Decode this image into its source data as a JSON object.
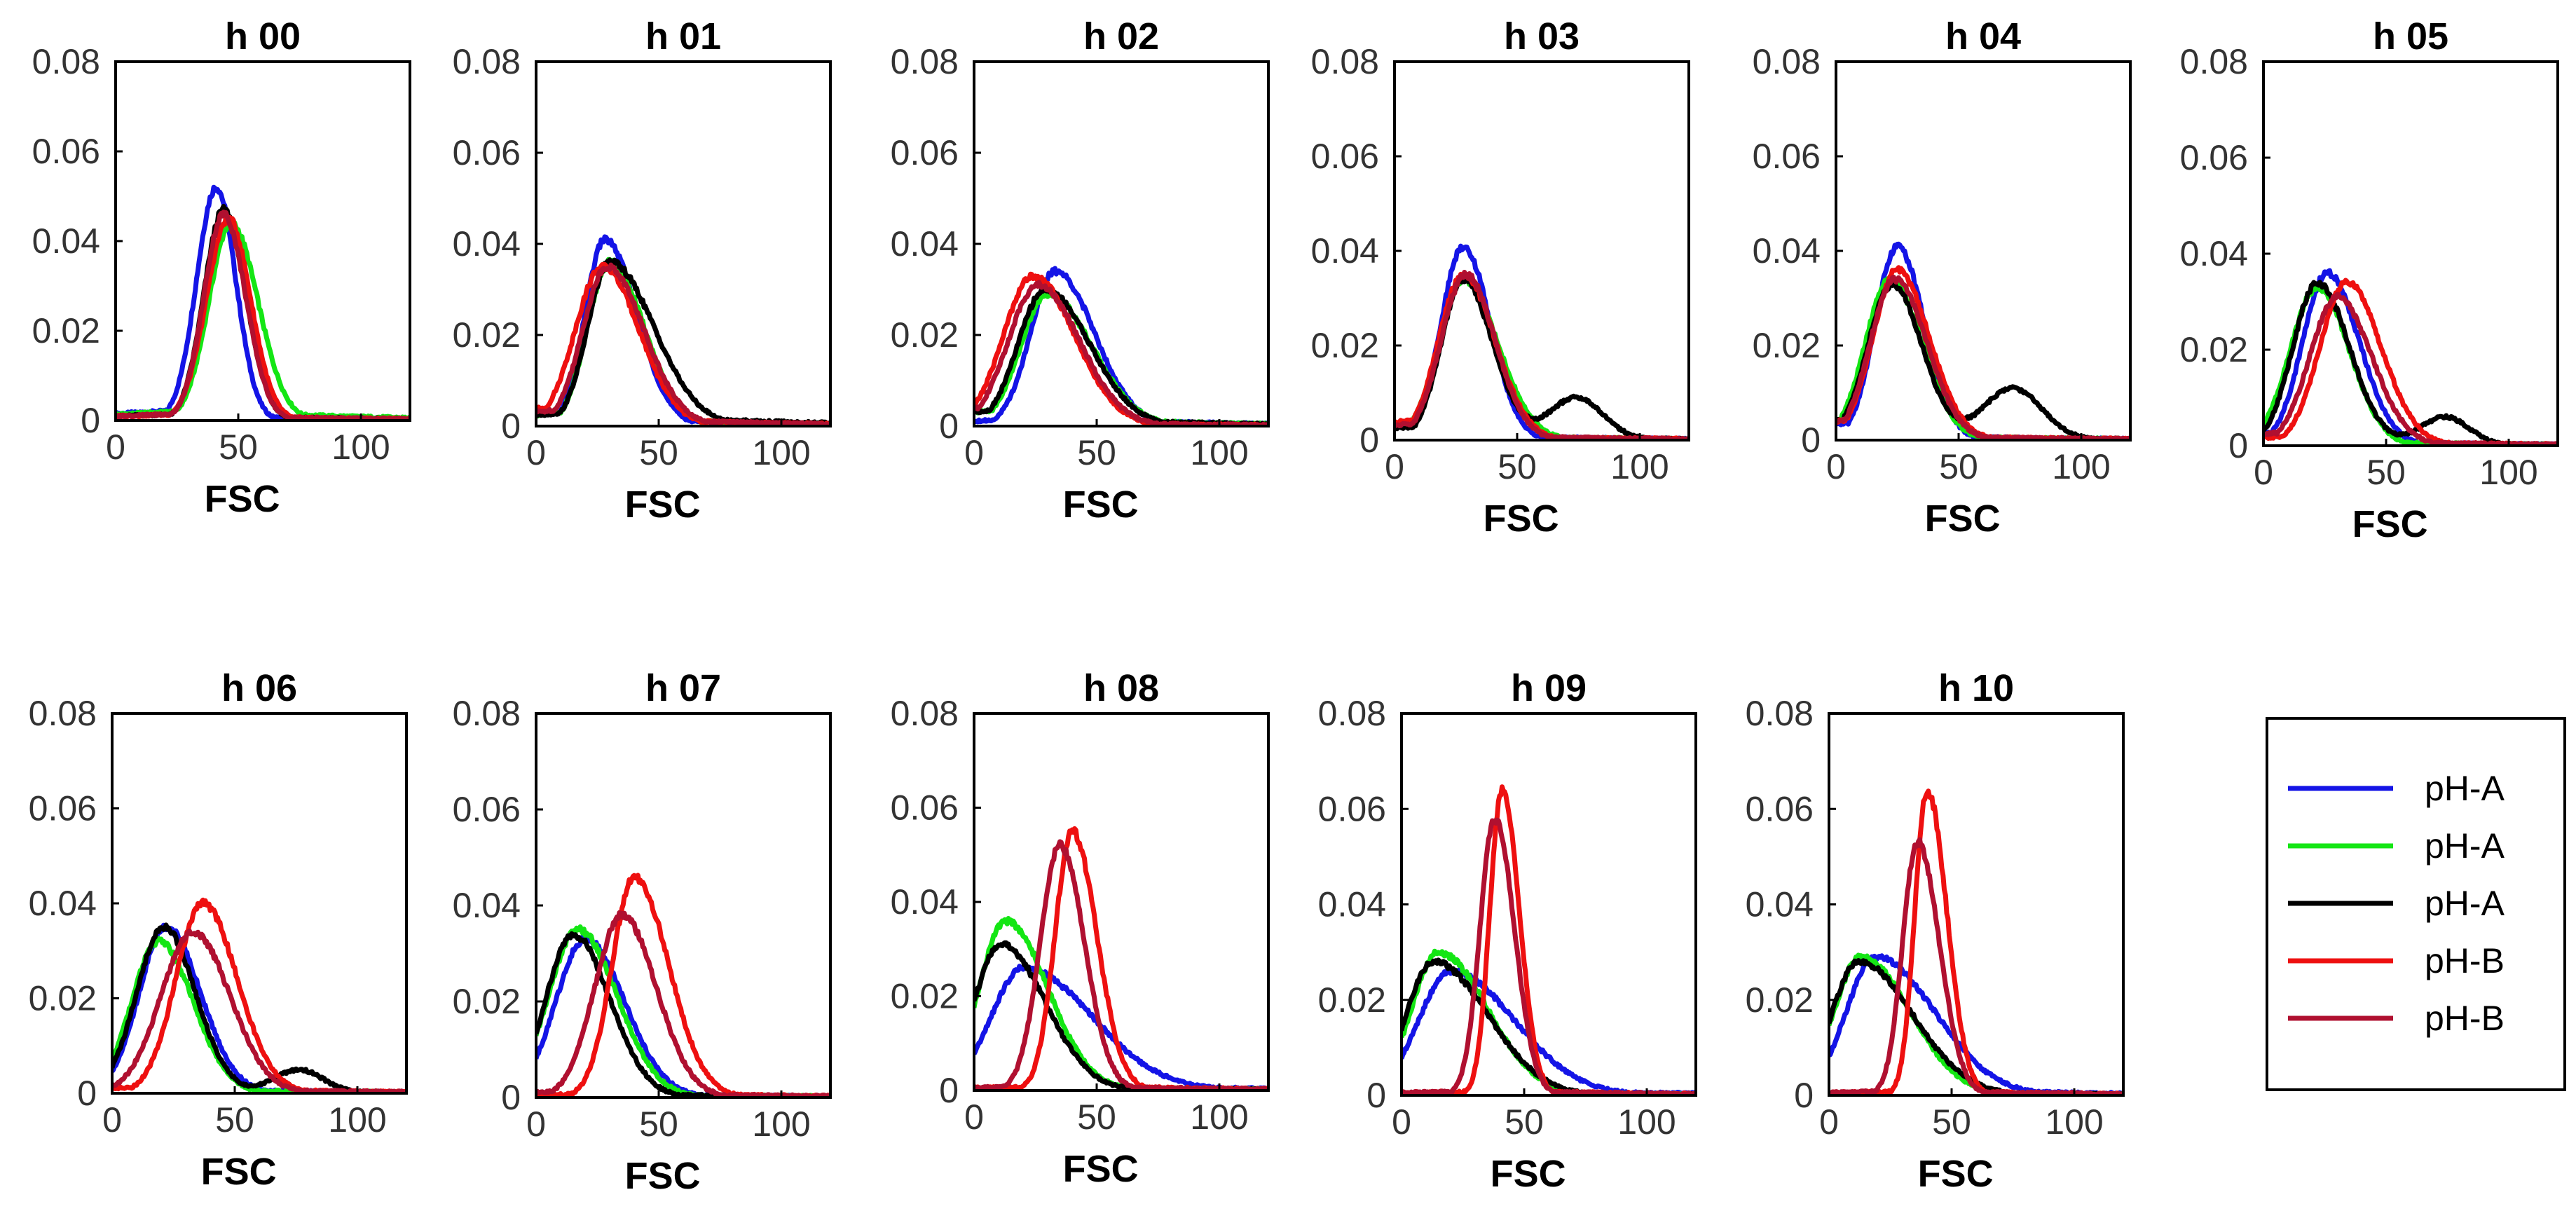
{
  "colors": {
    "blue": "#1414e6",
    "green": "#14e614",
    "black": "#000000",
    "red": "#ee1010",
    "darkred": "#b01030"
  },
  "legend": [
    {
      "label": "pH-A",
      "color_key": "blue"
    },
    {
      "label": "pH-A",
      "color_key": "green"
    },
    {
      "label": "pH-A",
      "color_key": "black"
    },
    {
      "label": "pH-B",
      "color_key": "red"
    },
    {
      "label": "pH-B",
      "color_key": "darkred"
    }
  ],
  "chart_data": [
    {
      "title": "h 00",
      "type": "line",
      "xlabel": "FSC",
      "xlim": [
        0,
        120
      ],
      "ylim": [
        0,
        0.08
      ],
      "xticks": [
        0,
        50,
        100
      ],
      "yticks": [
        0,
        0.02,
        0.04,
        0.06,
        0.08
      ],
      "ytick_labels": [
        "0",
        "0.02",
        "0.04",
        "0.06",
        "0.08"
      ],
      "series": [
        {
          "name": "pH-A",
          "color_key": "blue",
          "peak_x": 41,
          "peak_y": 0.052,
          "width_left": 8,
          "width_right": 8,
          "base_left": 0.003,
          "base_right": 0.001
        },
        {
          "name": "pH-A",
          "color_key": "green",
          "peak_x": 47,
          "peak_y": 0.044,
          "width_left": 9,
          "width_right": 11,
          "base_left": 0.003,
          "base_right": 0.002
        },
        {
          "name": "pH-A",
          "color_key": "black",
          "peak_x": 44,
          "peak_y": 0.047,
          "width_left": 8,
          "width_right": 9,
          "base_left": 0.002,
          "base_right": 0.001
        },
        {
          "name": "pH-B",
          "color_key": "red",
          "peak_x": 46,
          "peak_y": 0.045,
          "width_left": 9,
          "width_right": 9,
          "base_left": 0.002,
          "base_right": 0.001
        },
        {
          "name": "pH-B",
          "color_key": "darkred",
          "peak_x": 44,
          "peak_y": 0.046,
          "width_left": 8,
          "width_right": 9,
          "base_left": 0.002,
          "base_right": 0.001
        }
      ]
    },
    {
      "title": "h 01",
      "type": "line",
      "xlabel": "FSC",
      "xlim": [
        0,
        120
      ],
      "ylim": [
        0,
        0.08
      ],
      "xticks": [
        0,
        50,
        100
      ],
      "yticks": [
        0,
        0.02,
        0.04,
        0.06,
        0.08
      ],
      "ytick_labels": [
        "0",
        "0.02",
        "0.04",
        "0.06",
        "0.08"
      ],
      "series": [
        {
          "name": "pH-A",
          "color_key": "blue",
          "peak_x": 28,
          "peak_y": 0.041,
          "width_left": 8,
          "width_right": 13,
          "base_left": 0.004,
          "base_right": 0.002
        },
        {
          "name": "pH-A",
          "color_key": "green",
          "peak_x": 30,
          "peak_y": 0.036,
          "width_left": 9,
          "width_right": 14,
          "base_left": 0.004,
          "base_right": 0.002
        },
        {
          "name": "pH-A",
          "color_key": "black",
          "peak_x": 30,
          "peak_y": 0.036,
          "width_left": 9,
          "width_right": 18,
          "base_left": 0.004,
          "base_right": 0.003
        },
        {
          "name": "pH-B",
          "color_key": "red",
          "peak_x": 27,
          "peak_y": 0.035,
          "width_left": 11,
          "width_right": 15,
          "base_left": 0.006,
          "base_right": 0.002
        },
        {
          "name": "pH-B",
          "color_key": "darkred",
          "peak_x": 29,
          "peak_y": 0.035,
          "width_left": 10,
          "width_right": 15,
          "base_left": 0.005,
          "base_right": 0.002
        }
      ]
    },
    {
      "title": "h 02",
      "type": "line",
      "xlabel": "FSC",
      "xlim": [
        0,
        120
      ],
      "ylim": [
        0,
        0.08
      ],
      "xticks": [
        0,
        50,
        100
      ],
      "yticks": [
        0,
        0.02,
        0.04,
        0.06,
        0.08
      ],
      "ytick_labels": [
        "0",
        "0.02",
        "0.04",
        "0.06",
        "0.08"
      ],
      "series": [
        {
          "name": "pH-A",
          "color_key": "blue",
          "peak_x": 33,
          "peak_y": 0.034,
          "width_left": 10,
          "width_right": 16,
          "base_left": 0.002,
          "base_right": 0.002
        },
        {
          "name": "pH-A",
          "color_key": "green",
          "peak_x": 30,
          "peak_y": 0.029,
          "width_left": 11,
          "width_right": 18,
          "base_left": 0.005,
          "base_right": 0.002
        },
        {
          "name": "pH-A",
          "color_key": "black",
          "peak_x": 29,
          "peak_y": 0.03,
          "width_left": 11,
          "width_right": 18,
          "base_left": 0.005,
          "base_right": 0.002
        },
        {
          "name": "pH-B",
          "color_key": "red",
          "peak_x": 24,
          "peak_y": 0.033,
          "width_left": 12,
          "width_right": 17,
          "base_left": 0.006,
          "base_right": 0.001
        },
        {
          "name": "pH-B",
          "color_key": "darkred",
          "peak_x": 26,
          "peak_y": 0.031,
          "width_left": 12,
          "width_right": 17,
          "base_left": 0.006,
          "base_right": 0.001
        }
      ]
    },
    {
      "title": "h 03",
      "type": "line",
      "xlabel": "FSC",
      "xlim": [
        0,
        120
      ],
      "ylim": [
        0,
        0.08
      ],
      "xticks": [
        0,
        50,
        100
      ],
      "yticks": [
        0,
        0.02,
        0.04,
        0.06,
        0.08
      ],
      "ytick_labels": [
        "0",
        "0.02",
        "0.04",
        "0.06",
        "0.08"
      ],
      "series": [
        {
          "name": "pH-A",
          "color_key": "blue",
          "peak_x": 28,
          "peak_y": 0.041,
          "width_left": 9,
          "width_right": 11,
          "base_left": 0.005,
          "base_right": 0.001
        },
        {
          "name": "pH-A",
          "color_key": "green",
          "peak_x": 28,
          "peak_y": 0.034,
          "width_left": 10,
          "width_right": 14,
          "base_left": 0.005,
          "base_right": 0.001
        },
        {
          "name": "pH-A",
          "color_key": "black",
          "peak_x": 28,
          "peak_y": 0.034,
          "width_left": 9,
          "width_right": 12,
          "base_left": 0.004,
          "base_right": 0.001,
          "bump_x": 74,
          "bump_y": 0.009,
          "bump_w": 11
        },
        {
          "name": "pH-B",
          "color_key": "red",
          "peak_x": 28,
          "peak_y": 0.035,
          "width_left": 10,
          "width_right": 13,
          "base_left": 0.006,
          "base_right": 0.001
        },
        {
          "name": "pH-B",
          "color_key": "darkred",
          "peak_x": 29,
          "peak_y": 0.035,
          "width_left": 10,
          "width_right": 12,
          "base_left": 0.005,
          "base_right": 0.001
        }
      ]
    },
    {
      "title": "h 04",
      "type": "line",
      "xlabel": "FSC",
      "xlim": [
        0,
        120
      ],
      "ylim": [
        0,
        0.08
      ],
      "xticks": [
        0,
        50,
        100
      ],
      "yticks": [
        0,
        0.02,
        0.04,
        0.06,
        0.08
      ],
      "ytick_labels": [
        "0",
        "0.02",
        "0.04",
        "0.06",
        "0.08"
      ],
      "series": [
        {
          "name": "pH-A",
          "color_key": "blue",
          "peak_x": 25,
          "peak_y": 0.041,
          "width_left": 9,
          "width_right": 11,
          "base_left": 0.005,
          "base_right": 0.001
        },
        {
          "name": "pH-A",
          "color_key": "green",
          "peak_x": 22,
          "peak_y": 0.034,
          "width_left": 10,
          "width_right": 13,
          "base_left": 0.006,
          "base_right": 0.001
        },
        {
          "name": "pH-A",
          "color_key": "black",
          "peak_x": 23,
          "peak_y": 0.033,
          "width_left": 10,
          "width_right": 12,
          "base_left": 0.006,
          "base_right": 0.001,
          "bump_x": 72,
          "bump_y": 0.011,
          "bump_w": 12
        },
        {
          "name": "pH-B",
          "color_key": "red",
          "peak_x": 25,
          "peak_y": 0.036,
          "width_left": 10,
          "width_right": 13,
          "base_left": 0.006,
          "base_right": 0.001
        },
        {
          "name": "pH-B",
          "color_key": "darkred",
          "peak_x": 24,
          "peak_y": 0.034,
          "width_left": 10,
          "width_right": 13,
          "base_left": 0.006,
          "base_right": 0.001
        }
      ]
    },
    {
      "title": "h 05",
      "type": "line",
      "xlabel": "FSC",
      "xlim": [
        0,
        120
      ],
      "ylim": [
        0,
        0.08
      ],
      "xticks": [
        0,
        50,
        100
      ],
      "yticks": [
        0,
        0.02,
        0.04,
        0.06,
        0.08
      ],
      "ytick_labels": [
        "0",
        "0.02",
        "0.04",
        "0.06",
        "0.08"
      ],
      "series": [
        {
          "name": "pH-A",
          "color_key": "blue",
          "peak_x": 26,
          "peak_y": 0.036,
          "width_left": 10,
          "width_right": 13,
          "base_left": 0.004,
          "base_right": 0.001
        },
        {
          "name": "pH-A",
          "color_key": "green",
          "peak_x": 22,
          "peak_y": 0.033,
          "width_left": 11,
          "width_right": 13,
          "base_left": 0.005,
          "base_right": 0.001
        },
        {
          "name": "pH-A",
          "color_key": "black",
          "peak_x": 22,
          "peak_y": 0.034,
          "width_left": 10,
          "width_right": 13,
          "base_left": 0.005,
          "base_right": 0.001,
          "bump_x": 74,
          "bump_y": 0.006,
          "bump_w": 10
        },
        {
          "name": "pH-B",
          "color_key": "red",
          "peak_x": 34,
          "peak_y": 0.034,
          "width_left": 11,
          "width_right": 14,
          "base_left": 0.003,
          "base_right": 0.001
        },
        {
          "name": "pH-B",
          "color_key": "darkred",
          "peak_x": 30,
          "peak_y": 0.031,
          "width_left": 11,
          "width_right": 14,
          "base_left": 0.004,
          "base_right": 0.001
        }
      ]
    },
    {
      "title": "h 06",
      "type": "line",
      "xlabel": "FSC",
      "xlim": [
        0,
        120
      ],
      "ylim": [
        0,
        0.08
      ],
      "xticks": [
        0,
        50,
        100
      ],
      "yticks": [
        0,
        0.02,
        0.04,
        0.06,
        0.08
      ],
      "ytick_labels": [
        "0",
        "0.02",
        "0.04",
        "0.06",
        "0.08"
      ],
      "series": [
        {
          "name": "pH-A",
          "color_key": "blue",
          "peak_x": 22,
          "peak_y": 0.035,
          "width_left": 11,
          "width_right": 14,
          "base_left": 0.004,
          "base_right": 0.001
        },
        {
          "name": "pH-A",
          "color_key": "green",
          "peak_x": 19,
          "peak_y": 0.032,
          "width_left": 11,
          "width_right": 14,
          "base_left": 0.005,
          "base_right": 0.001
        },
        {
          "name": "pH-A",
          "color_key": "black",
          "peak_x": 21,
          "peak_y": 0.035,
          "width_left": 11,
          "width_right": 13,
          "base_left": 0.005,
          "base_right": 0.001,
          "bump_x": 76,
          "bump_y": 0.005,
          "bump_w": 10
        },
        {
          "name": "pH-B",
          "color_key": "red",
          "peak_x": 37,
          "peak_y": 0.04,
          "width_left": 11,
          "width_right": 14,
          "base_left": 0.002,
          "base_right": 0.001
        },
        {
          "name": "pH-B",
          "color_key": "darkred",
          "peak_x": 33,
          "peak_y": 0.034,
          "width_left": 13,
          "width_right": 15,
          "base_left": 0.003,
          "base_right": 0.001
        }
      ]
    },
    {
      "title": "h 07",
      "type": "line",
      "xlabel": "FSC",
      "xlim": [
        0,
        120
      ],
      "ylim": [
        0,
        0.08
      ],
      "xticks": [
        0,
        50,
        100
      ],
      "yticks": [
        0,
        0.02,
        0.04,
        0.06,
        0.08
      ],
      "ytick_labels": [
        "0",
        "0.02",
        "0.04",
        "0.06",
        "0.08"
      ],
      "series": [
        {
          "name": "pH-A",
          "color_key": "blue",
          "peak_x": 20,
          "peak_y": 0.033,
          "width_left": 12,
          "width_right": 16,
          "base_left": 0.006,
          "base_right": 0.001
        },
        {
          "name": "pH-A",
          "color_key": "green",
          "peak_x": 17,
          "peak_y": 0.035,
          "width_left": 12,
          "width_right": 16,
          "base_left": 0.007,
          "base_right": 0.001
        },
        {
          "name": "pH-A",
          "color_key": "black",
          "peak_x": 15,
          "peak_y": 0.034,
          "width_left": 11,
          "width_right": 15,
          "base_left": 0.007,
          "base_right": 0.001
        },
        {
          "name": "pH-B",
          "color_key": "red",
          "peak_x": 40,
          "peak_y": 0.046,
          "width_left": 9,
          "width_right": 14,
          "base_left": 0.001,
          "base_right": 0.001
        },
        {
          "name": "pH-B",
          "color_key": "darkred",
          "peak_x": 35,
          "peak_y": 0.038,
          "width_left": 11,
          "width_right": 14,
          "base_left": 0.002,
          "base_right": 0.001
        }
      ]
    },
    {
      "title": "h 08",
      "type": "line",
      "xlabel": "FSC",
      "xlim": [
        0,
        120
      ],
      "ylim": [
        0,
        0.08
      ],
      "xticks": [
        0,
        50,
        100
      ],
      "yticks": [
        0,
        0.02,
        0.04,
        0.06,
        0.08
      ],
      "ytick_labels": [
        "0",
        "0.02",
        "0.04",
        "0.06",
        "0.08"
      ],
      "series": [
        {
          "name": "pH-A",
          "color_key": "blue",
          "peak_x": 20,
          "peak_y": 0.026,
          "width_left": 13,
          "width_right": 28,
          "base_left": 0.005,
          "base_right": 0.002
        },
        {
          "name": "pH-A",
          "color_key": "green",
          "peak_x": 13,
          "peak_y": 0.036,
          "width_left": 11,
          "width_right": 17,
          "base_left": 0.012,
          "base_right": 0.001
        },
        {
          "name": "pH-A",
          "color_key": "black",
          "peak_x": 11,
          "peak_y": 0.031,
          "width_left": 11,
          "width_right": 18,
          "base_left": 0.015,
          "base_right": 0.001
        },
        {
          "name": "pH-B",
          "color_key": "red",
          "peak_x": 40,
          "peak_y": 0.055,
          "width_left": 7,
          "width_right": 10,
          "base_left": 0.001,
          "base_right": 0.001
        },
        {
          "name": "pH-B",
          "color_key": "darkred",
          "peak_x": 35,
          "peak_y": 0.052,
          "width_left": 8,
          "width_right": 10,
          "base_left": 0.001,
          "base_right": 0.001
        }
      ]
    },
    {
      "title": "h 09",
      "type": "line",
      "xlabel": "FSC",
      "xlim": [
        0,
        120
      ],
      "ylim": [
        0,
        0.08
      ],
      "xticks": [
        0,
        50,
        100
      ],
      "yticks": [
        0,
        0.02,
        0.04,
        0.06,
        0.08
      ],
      "ytick_labels": [
        "0",
        "0.02",
        "0.04",
        "0.06",
        "0.08"
      ],
      "series": [
        {
          "name": "pH-A",
          "color_key": "blue",
          "peak_x": 20,
          "peak_y": 0.026,
          "width_left": 13,
          "width_right": 26,
          "base_left": 0.003,
          "base_right": 0.002
        },
        {
          "name": "pH-A",
          "color_key": "green",
          "peak_x": 15,
          "peak_y": 0.03,
          "width_left": 11,
          "width_right": 20,
          "base_left": 0.008,
          "base_right": 0.001
        },
        {
          "name": "pH-A",
          "color_key": "black",
          "peak_x": 13,
          "peak_y": 0.028,
          "width_left": 11,
          "width_right": 22,
          "base_left": 0.009,
          "base_right": 0.001
        },
        {
          "name": "pH-B",
          "color_key": "red",
          "peak_x": 41,
          "peak_y": 0.064,
          "width_left": 5,
          "width_right": 7,
          "base_left": 0.001,
          "base_right": 0.001
        },
        {
          "name": "pH-B",
          "color_key": "darkred",
          "peak_x": 38,
          "peak_y": 0.058,
          "width_left": 6,
          "width_right": 8,
          "base_left": 0.001,
          "base_right": 0.001
        }
      ]
    },
    {
      "title": "h 10",
      "type": "line",
      "xlabel": "FSC",
      "xlim": [
        0,
        120
      ],
      "ylim": [
        0,
        0.08
      ],
      "xticks": [
        0,
        50,
        100
      ],
      "yticks": [
        0,
        0.02,
        0.04,
        0.06,
        0.08
      ],
      "ytick_labels": [
        "0",
        "0.02",
        "0.04",
        "0.06",
        "0.08"
      ],
      "series": [
        {
          "name": "pH-A",
          "color_key": "blue",
          "peak_x": 19,
          "peak_y": 0.029,
          "width_left": 12,
          "width_right": 24,
          "base_left": 0.004,
          "base_right": 0.002
        },
        {
          "name": "pH-A",
          "color_key": "green",
          "peak_x": 13,
          "peak_y": 0.029,
          "width_left": 11,
          "width_right": 20,
          "base_left": 0.01,
          "base_right": 0.001
        },
        {
          "name": "pH-A",
          "color_key": "black",
          "peak_x": 12,
          "peak_y": 0.028,
          "width_left": 11,
          "width_right": 22,
          "base_left": 0.01,
          "base_right": 0.001
        },
        {
          "name": "pH-B",
          "color_key": "red",
          "peak_x": 40,
          "peak_y": 0.064,
          "width_left": 5,
          "width_right": 8,
          "base_left": 0.001,
          "base_right": 0.001
        },
        {
          "name": "pH-B",
          "color_key": "darkred",
          "peak_x": 36,
          "peak_y": 0.053,
          "width_left": 6,
          "width_right": 9,
          "base_left": 0.001,
          "base_right": 0.001
        }
      ]
    }
  ]
}
